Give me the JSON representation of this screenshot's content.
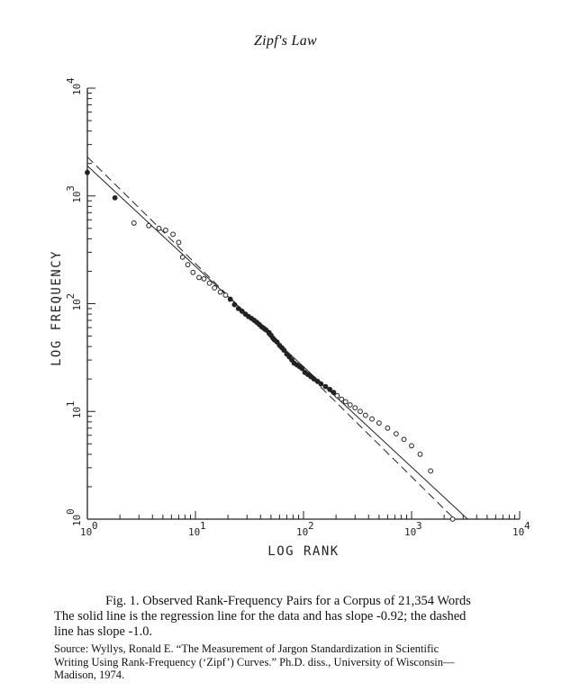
{
  "header": {
    "title": "Zipf's Law"
  },
  "chart_data": {
    "type": "scatter",
    "xlabel": "LOG RANK",
    "ylabel": "LOG FREQUENCY",
    "xscale": "log",
    "yscale": "log",
    "xlim": [
      1,
      10000
    ],
    "ylim": [
      1,
      10000
    ],
    "x_ticks": [
      {
        "base": "10",
        "exp": "0"
      },
      {
        "base": "10",
        "exp": "1"
      },
      {
        "base": "10",
        "exp": "2"
      },
      {
        "base": "10",
        "exp": "3"
      },
      {
        "base": "10",
        "exp": "4"
      }
    ],
    "y_ticks": [
      {
        "base": "10",
        "exp": "0"
      },
      {
        "base": "10",
        "exp": "1"
      },
      {
        "base": "10",
        "exp": "2"
      },
      {
        "base": "10",
        "exp": "3"
      },
      {
        "base": "10",
        "exp": "4"
      }
    ],
    "series": [
      {
        "style": "points",
        "points": [
          [
            1,
            1650
          ],
          [
            1.8,
            960
          ],
          [
            2.7,
            560
          ],
          [
            3.7,
            530
          ],
          [
            4.6,
            500
          ],
          [
            5.3,
            480
          ],
          [
            6.2,
            440
          ],
          [
            7.0,
            370
          ],
          [
            7.6,
            270
          ],
          [
            8.5,
            230
          ],
          [
            9.5,
            195
          ],
          [
            10.8,
            175
          ],
          [
            12.0,
            170
          ],
          [
            13.5,
            155
          ],
          [
            15.0,
            140
          ],
          [
            17.0,
            128
          ],
          [
            19.0,
            120
          ],
          [
            21.0,
            110
          ],
          [
            23.0,
            98
          ],
          [
            25.0,
            90
          ],
          [
            27.0,
            85
          ],
          [
            29.0,
            80
          ],
          [
            31.0,
            76
          ],
          [
            33.0,
            73
          ],
          [
            35.0,
            70
          ],
          [
            37.0,
            67
          ],
          [
            39.0,
            64
          ],
          [
            41.0,
            61
          ],
          [
            43.0,
            59
          ],
          [
            45.0,
            57
          ],
          [
            48.0,
            54
          ],
          [
            50.0,
            51
          ],
          [
            52.0,
            48
          ],
          [
            54.0,
            46
          ],
          [
            57.0,
            44
          ],
          [
            60.0,
            41
          ],
          [
            63.0,
            39
          ],
          [
            66.0,
            37
          ],
          [
            70.0,
            34
          ],
          [
            74.0,
            32
          ],
          [
            78.0,
            30
          ],
          [
            82.0,
            28
          ],
          [
            87.0,
            27
          ],
          [
            92.0,
            26
          ],
          [
            97.0,
            25
          ],
          [
            103.0,
            23
          ],
          [
            110.0,
            22
          ],
          [
            117.0,
            21
          ],
          [
            125.0,
            20
          ],
          [
            135.0,
            19
          ],
          [
            145.0,
            18
          ],
          [
            160.0,
            17
          ],
          [
            175.0,
            16
          ],
          [
            190.0,
            15
          ],
          [
            205.0,
            14
          ],
          [
            225.0,
            13
          ],
          [
            245.0,
            12.3
          ],
          [
            270.0,
            11.5
          ],
          [
            300.0,
            10.8
          ],
          [
            335.0,
            10
          ],
          [
            375.0,
            9.2
          ],
          [
            430.0,
            8.5
          ],
          [
            500.0,
            7.8
          ],
          [
            600.0,
            7
          ],
          [
            720.0,
            6.2
          ],
          [
            850.0,
            5.5
          ],
          [
            1000.0,
            4.8
          ],
          [
            1200.0,
            4
          ],
          [
            1500.0,
            2.8
          ],
          [
            2400.0,
            1
          ]
        ]
      },
      {
        "style": "solid-line",
        "slope": -0.92,
        "points": [
          [
            1,
            1900
          ],
          [
            3300,
            1
          ]
        ]
      },
      {
        "style": "dashed-line",
        "slope": -1.0,
        "points": [
          [
            1,
            2300
          ],
          [
            2500,
            1
          ]
        ]
      }
    ]
  },
  "caption": {
    "line1": "Fig. 1. Observed Rank-Frequency Pairs for a Corpus of 21,354 Words",
    "line2": "The solid line is the regression line for the data and has slope -0.92; the dashed",
    "line3": "line has slope -1.0."
  },
  "source": {
    "line1": "Source: Wyllys, Ronald E. “The Measurement of Jargon Standardization in Scientific",
    "line2": "Writing Using Rank-Frequency (‘Zipf’) Curves.” Ph.D. diss., University of Wisconsin—",
    "line3": "Madison, 1974."
  }
}
